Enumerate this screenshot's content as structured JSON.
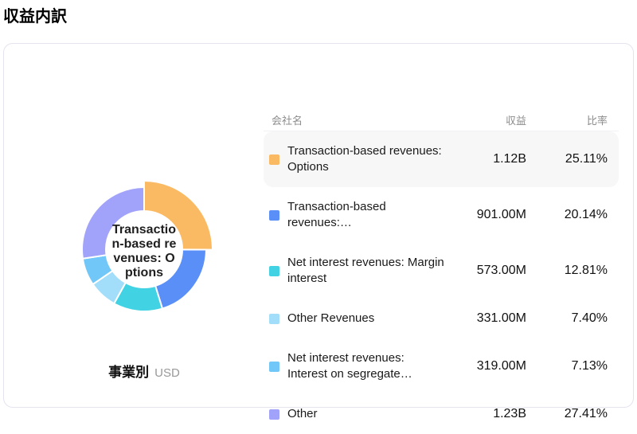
{
  "page_title": "収益内訳",
  "card": {
    "chart": {
      "center_label": "Transaction-based revenues: Options",
      "center_label_lines": [
        "Transactio",
        "n-based re",
        "venues: O",
        "ptions"
      ],
      "footer_label": "事業別",
      "footer_unit": "USD"
    },
    "table": {
      "headers": {
        "name": "会社名",
        "value": "収益",
        "ratio": "比率"
      }
    }
  },
  "chart_data": {
    "type": "pie",
    "subtype": "donut",
    "title": "収益内訳",
    "series_label": "事業別",
    "unit": "USD",
    "legend_position": "right",
    "selected_slice": "Transaction-based revenues: Options",
    "geometry": {
      "inner_radius": 48,
      "outer_radius": 78,
      "selected_outer_radius": 86,
      "start_angle_deg": 0,
      "direction": "clockwise-from-top"
    },
    "slices": [
      {
        "label": "Transaction-based revenues: Options",
        "value": 1120000000,
        "value_display": "1.12B",
        "pct": 25.11,
        "ratio_display": "25.11%",
        "color": "#FABA63",
        "selected": true
      },
      {
        "label": "Transaction-based revenues:…",
        "value": 901000000,
        "value_display": "901.00M",
        "pct": 20.14,
        "ratio_display": "20.14%",
        "color": "#5A8FF8",
        "selected": false
      },
      {
        "label": "Net interest revenues: Margin interest",
        "value": 573000000,
        "value_display": "573.00M",
        "pct": 12.81,
        "ratio_display": "12.81%",
        "color": "#41D3E3",
        "selected": false
      },
      {
        "label": "Other Revenues",
        "value": 331000000,
        "value_display": "331.00M",
        "pct": 7.4,
        "ratio_display": "7.40%",
        "color": "#A2DDF9",
        "selected": false
      },
      {
        "label": "Net interest revenues: Interest on segregate…",
        "value": 319000000,
        "value_display": "319.00M",
        "pct": 7.13,
        "ratio_display": "7.13%",
        "color": "#70C7F8",
        "selected": false
      },
      {
        "label": "Other",
        "value": 1230000000,
        "value_display": "1.23B",
        "pct": 27.41,
        "ratio_display": "27.41%",
        "color": "#A1A2F9",
        "selected": false
      }
    ]
  }
}
